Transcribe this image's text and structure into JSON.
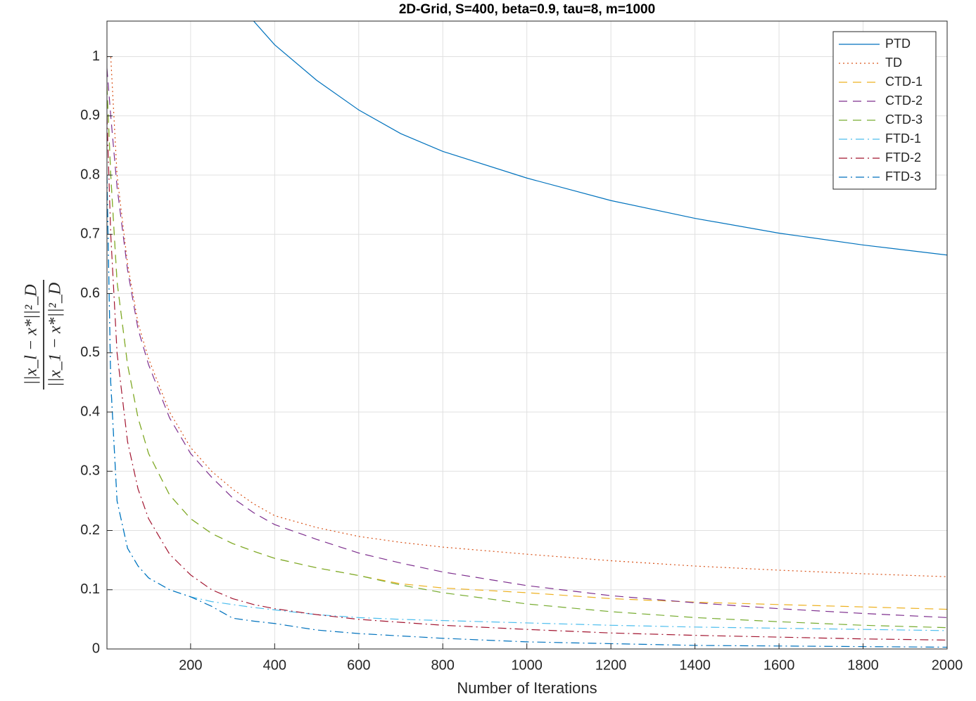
{
  "chart_data": {
    "type": "line",
    "title": "2D-Grid, S=400, beta=0.9, tau=8, m=1000",
    "xlabel": "Number of Iterations",
    "ylabel": {
      "numerator": "||x_l − x*||²_D",
      "denominator": "||x_1 − x*||²_D"
    },
    "x": [
      1,
      10,
      25,
      50,
      75,
      100,
      150,
      200,
      250,
      300,
      350,
      400,
      500,
      600,
      700,
      800,
      1000,
      1200,
      1400,
      1600,
      1800,
      2000
    ],
    "series": [
      {
        "name": "PTD",
        "color": "#0072BD",
        "style": "solid",
        "values": [
          null,
          null,
          null,
          null,
          null,
          null,
          null,
          null,
          null,
          null,
          1.06,
          1.02,
          0.96,
          0.91,
          0.87,
          0.84,
          0.795,
          0.757,
          0.727,
          0.702,
          0.682,
          0.665
        ]
      },
      {
        "name": "TD",
        "color": "#D95319",
        "style": "dotted",
        "values": [
          1.0,
          1.0,
          0.8,
          0.65,
          0.55,
          0.49,
          0.4,
          0.34,
          0.3,
          0.27,
          0.245,
          0.225,
          0.205,
          0.19,
          0.18,
          0.172,
          0.16,
          0.149,
          0.14,
          0.133,
          0.127,
          0.122
        ]
      },
      {
        "name": "CTD-1",
        "color": "#EDB120",
        "style": "dashed",
        "values": [
          0.95,
          0.8,
          0.62,
          0.48,
          0.39,
          0.33,
          0.26,
          0.22,
          0.195,
          0.178,
          0.165,
          0.153,
          0.137,
          0.124,
          0.11,
          0.103,
          0.095,
          0.085,
          0.079,
          0.075,
          0.071,
          0.067
        ]
      },
      {
        "name": "CTD-2",
        "color": "#7E2F8E",
        "style": "dashed",
        "values": [
          0.98,
          0.9,
          0.78,
          0.64,
          0.54,
          0.48,
          0.39,
          0.33,
          0.29,
          0.255,
          0.23,
          0.21,
          0.185,
          0.162,
          0.145,
          0.13,
          0.107,
          0.09,
          0.078,
          0.068,
          0.06,
          0.053
        ]
      },
      {
        "name": "CTD-3",
        "color": "#77AC30",
        "style": "dashed",
        "values": [
          0.95,
          0.8,
          0.62,
          0.48,
          0.39,
          0.33,
          0.26,
          0.22,
          0.195,
          0.178,
          0.165,
          0.153,
          0.137,
          0.124,
          0.108,
          0.095,
          0.076,
          0.063,
          0.053,
          0.046,
          0.04,
          0.036
        ]
      },
      {
        "name": "FTD-1",
        "color": "#4DBEEE",
        "style": "dashdot",
        "values": [
          0.8,
          0.45,
          0.25,
          0.17,
          0.14,
          0.12,
          0.1,
          0.088,
          0.08,
          0.075,
          0.07,
          0.066,
          0.058,
          0.053,
          0.05,
          0.048,
          0.044,
          0.04,
          0.037,
          0.035,
          0.033,
          0.031
        ]
      },
      {
        "name": "FTD-2",
        "color": "#A2142F",
        "style": "dashdot",
        "values": [
          0.9,
          0.7,
          0.5,
          0.35,
          0.27,
          0.22,
          0.16,
          0.125,
          0.1,
          0.085,
          0.075,
          0.068,
          0.058,
          0.05,
          0.045,
          0.04,
          0.033,
          0.027,
          0.023,
          0.02,
          0.017,
          0.015
        ]
      },
      {
        "name": "FTD-3",
        "color": "#0072BD",
        "style": "dashdot",
        "values": [
          0.8,
          0.45,
          0.25,
          0.17,
          0.14,
          0.12,
          0.1,
          0.088,
          0.072,
          0.052,
          0.047,
          0.043,
          0.032,
          0.026,
          0.022,
          0.018,
          0.012,
          0.009,
          0.006,
          0.005,
          0.004,
          0.003
        ]
      }
    ],
    "xlim": [
      1,
      2000
    ],
    "ylim": [
      0,
      1.06
    ],
    "xticks": [
      200,
      400,
      600,
      800,
      1000,
      1200,
      1400,
      1600,
      1800,
      2000
    ],
    "yticks": [
      0,
      0.1,
      0.2,
      0.3,
      0.4,
      0.5,
      0.6,
      0.7,
      0.8,
      0.9,
      1
    ],
    "grid": true,
    "legend": "top-right"
  }
}
